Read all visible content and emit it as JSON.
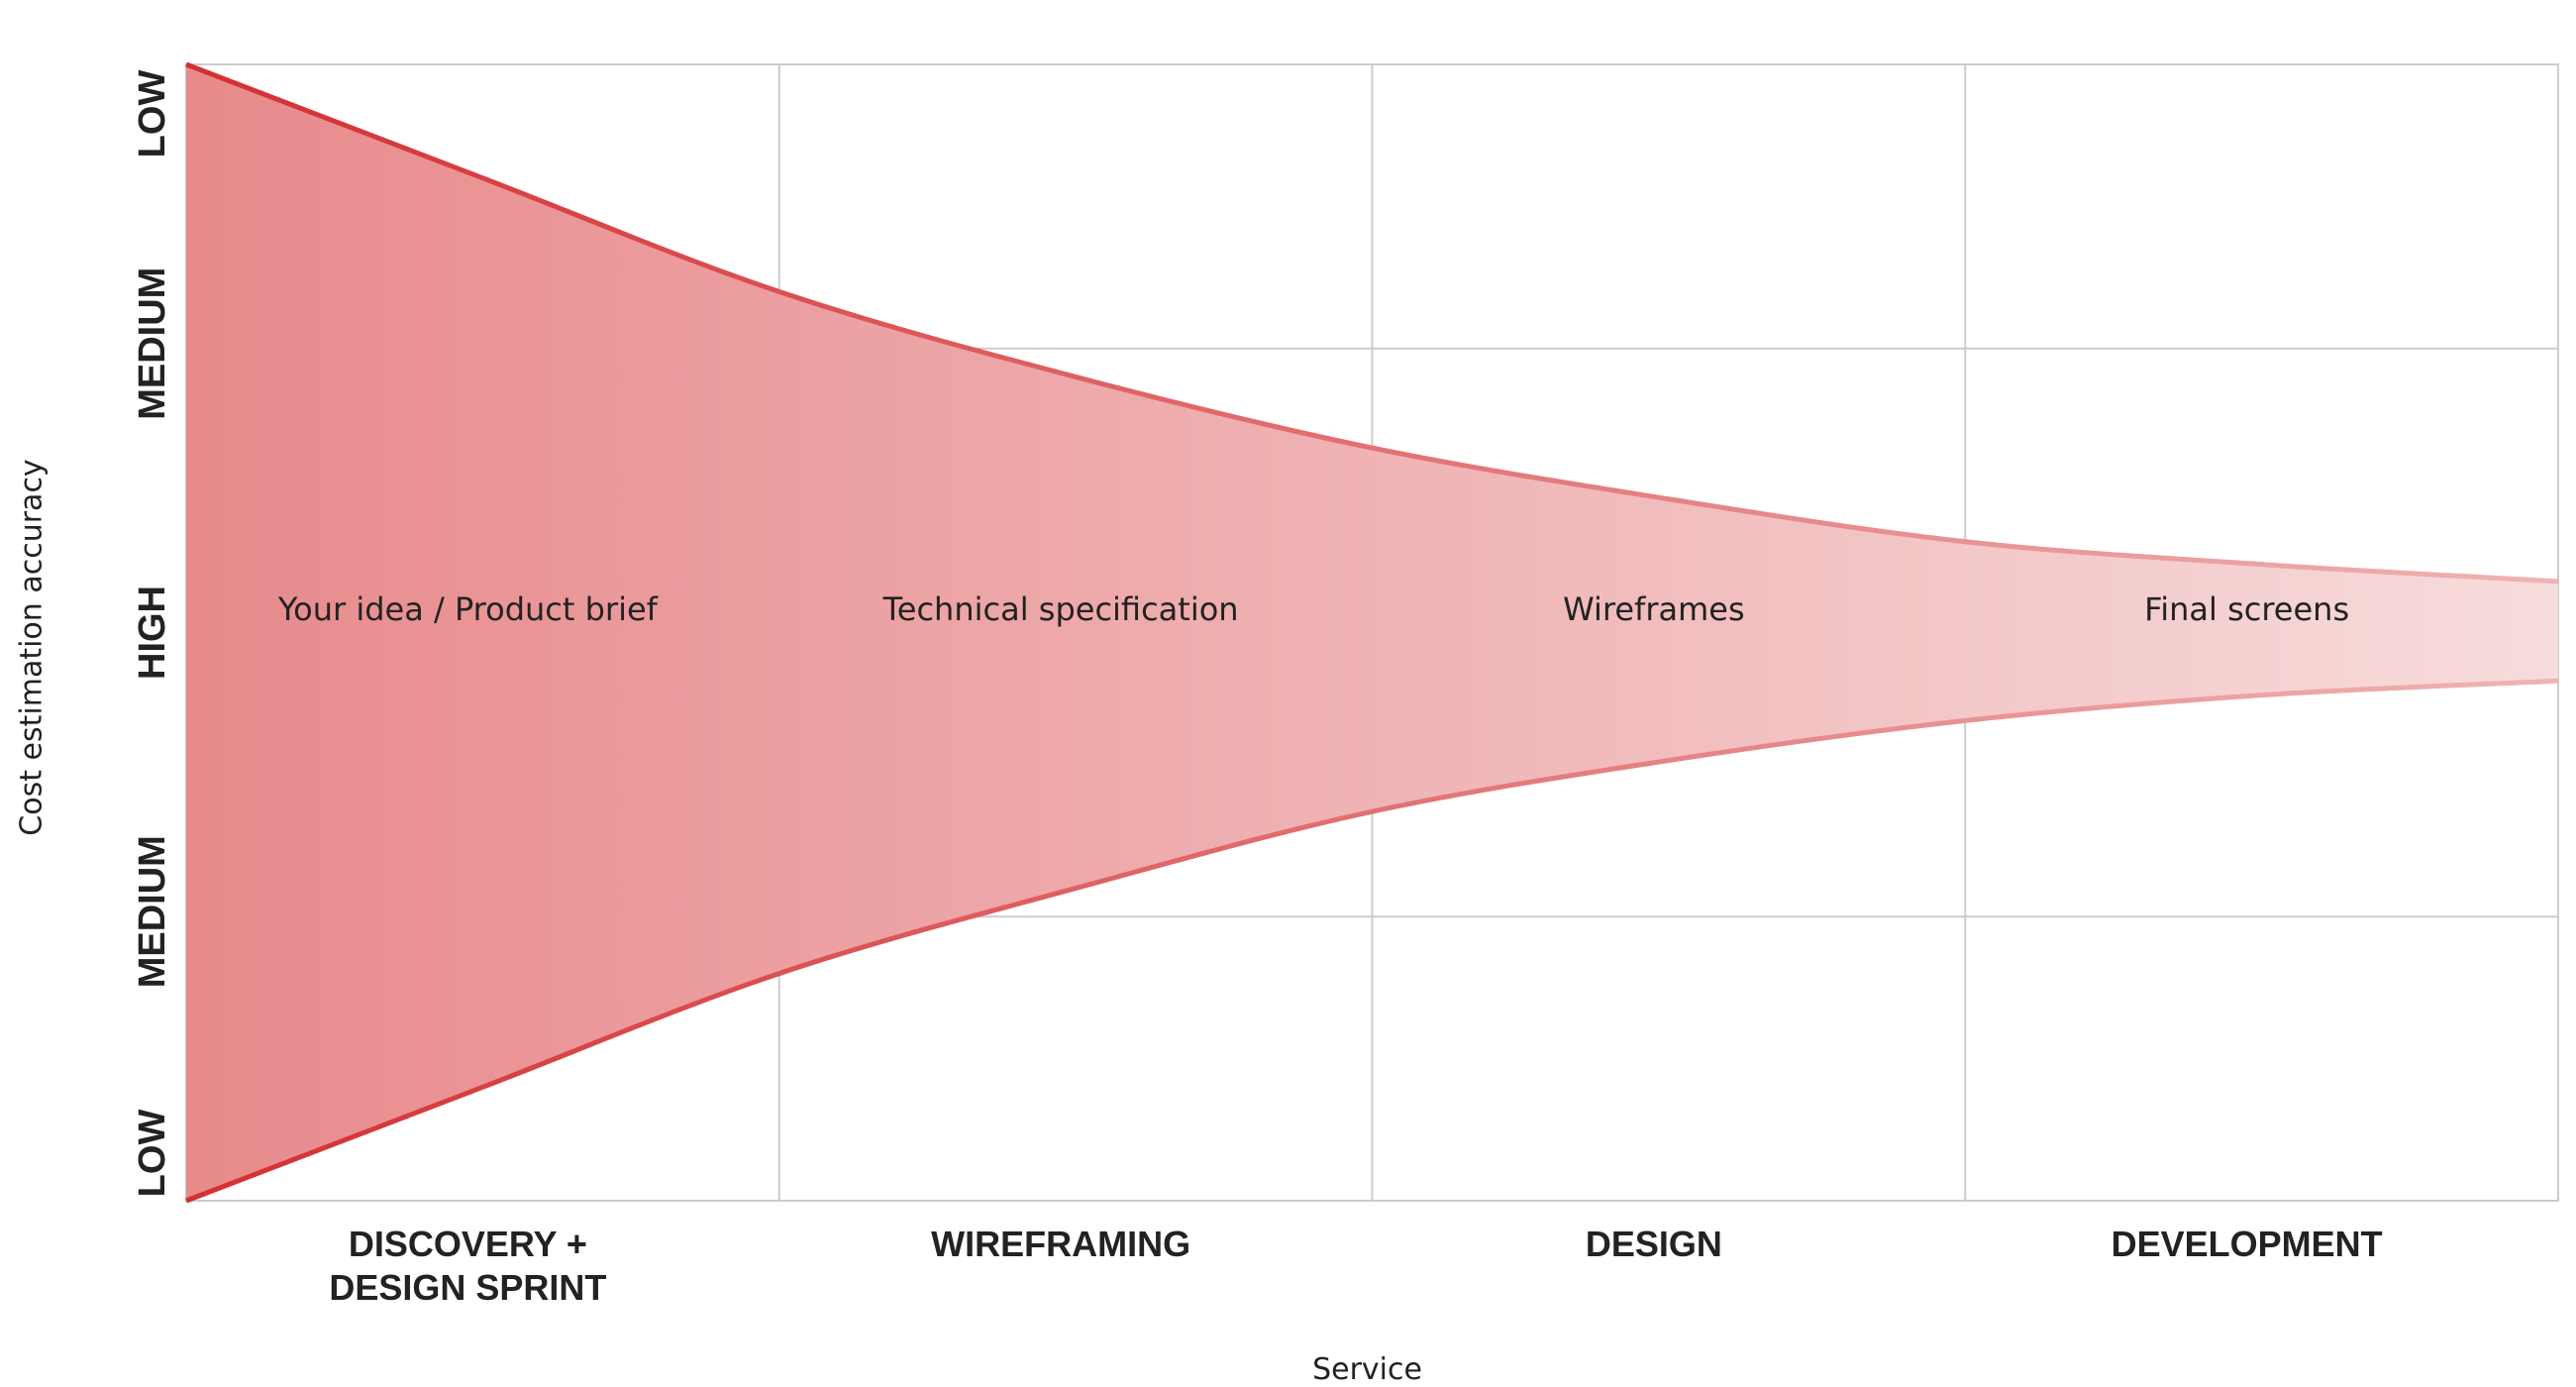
{
  "chart_data": {
    "type": "area",
    "xlabel": "Service",
    "ylabel": "Cost estimation accuracy",
    "categories": [
      [
        "DISCOVERY +",
        "DESIGN SPRINT"
      ],
      [
        "WIREFRAMING"
      ],
      [
        "DESIGN"
      ],
      [
        "DEVELOPMENT"
      ]
    ],
    "y_tick_labels": [
      "LOW",
      "MEDIUM",
      "HIGH",
      "MEDIUM",
      "LOW"
    ],
    "y_tick_values": [
      2,
      1,
      0,
      -1,
      -2
    ],
    "ylim": [
      -2,
      2
    ],
    "xlim": [
      0,
      4
    ],
    "stage_labels": [
      "Your idea / Product brief",
      "Technical specification",
      "Wireframes",
      "Final screens"
    ],
    "series": [
      {
        "x": [
          0,
          0.5,
          1,
          1.5,
          2,
          2.5,
          3,
          3.5,
          4
        ],
        "upper": [
          2.0,
          1.6,
          1.2,
          0.9,
          0.65,
          0.47,
          0.32,
          0.24,
          0.18
        ],
        "lower": [
          -2.0,
          -1.6,
          -1.2,
          -0.9,
          -0.63,
          -0.45,
          -0.31,
          -0.22,
          -0.17
        ]
      }
    ],
    "grid": true,
    "colors": {
      "fill_start": "#e88a8c",
      "fill_end": "#f7dcdc",
      "line_start": "#d42f31",
      "line_end": "#f0b3b4",
      "grid": "#cccccc"
    }
  }
}
